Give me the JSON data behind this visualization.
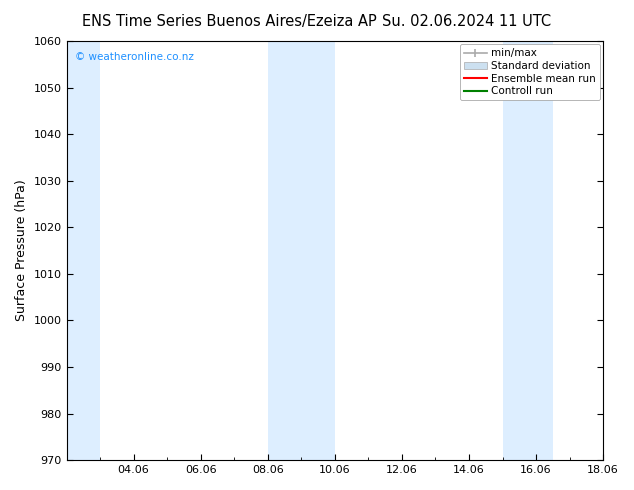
{
  "title_left": "ENS Time Series Buenos Aires/Ezeiza AP",
  "title_right": "Su. 02.06.2024 11 UTC",
  "ylabel": "Surface Pressure (hPa)",
  "ylim": [
    970,
    1060
  ],
  "yticks": [
    970,
    980,
    990,
    1000,
    1010,
    1020,
    1030,
    1040,
    1050,
    1060
  ],
  "bg_color": "#ffffff",
  "plot_bg_color": "#ffffff",
  "shaded_bands": [
    {
      "xmin": 0.0,
      "xmax": 1.0,
      "color": "#ddeeff"
    },
    {
      "xmin": 6.0,
      "xmax": 8.0,
      "color": "#ddeeff"
    },
    {
      "xmin": 13.0,
      "xmax": 14.5,
      "color": "#ddeeff"
    }
  ],
  "xtick_positions": [
    2,
    4,
    6,
    8,
    10,
    12,
    14,
    16
  ],
  "xtick_labels": [
    "04.06",
    "06.06",
    "08.06",
    "10.06",
    "12.06",
    "14.06",
    "16.06",
    "18.06"
  ],
  "watermark_text": "© weatheronline.co.nz",
  "watermark_color": "#1E90FF",
  "legend_items": [
    {
      "label": "min/max",
      "color": "#aaaaaa",
      "lw": 1.2
    },
    {
      "label": "Standard deviation",
      "color": "#cce0f0",
      "lw": 8
    },
    {
      "label": "Ensemble mean run",
      "color": "#ff0000",
      "lw": 1.5
    },
    {
      "label": "Controll run",
      "color": "#008000",
      "lw": 1.5
    }
  ],
  "tick_color": "#000000",
  "spine_color": "#000000",
  "title_fontsize": 10.5,
  "label_fontsize": 9,
  "tick_fontsize": 8,
  "legend_fontsize": 7.5
}
